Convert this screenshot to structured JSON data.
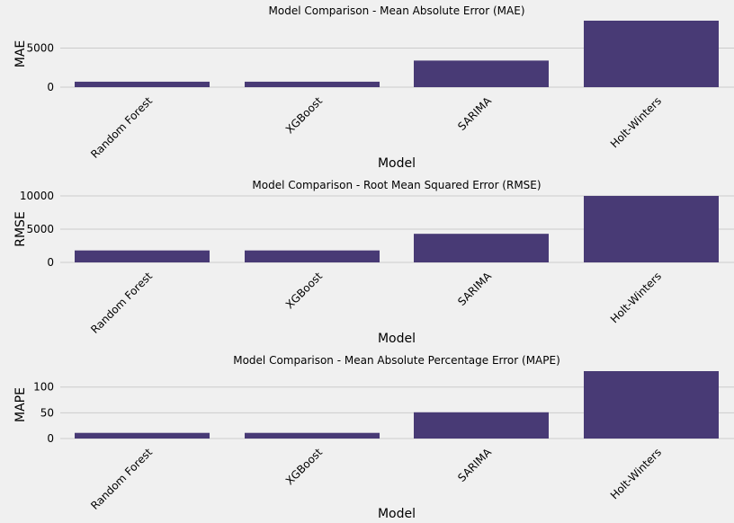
{
  "chart_data": [
    {
      "type": "bar",
      "title": "Model Comparison - Mean Absolute Error (MAE)",
      "xlabel": "Model",
      "ylabel": "MAE",
      "categories": [
        "Random Forest",
        "XGBoost",
        "SARIMA",
        "Holt-Winters"
      ],
      "values": [
        700,
        700,
        3400,
        8500
      ],
      "ylim": [
        0,
        8500
      ],
      "yticks": [
        0,
        5000
      ],
      "grid": true,
      "color": "#483a75"
    },
    {
      "type": "bar",
      "title": "Model Comparison - Root Mean Squared Error (RMSE)",
      "xlabel": "Model",
      "ylabel": "RMSE",
      "categories": [
        "Random Forest",
        "XGBoost",
        "SARIMA",
        "Holt-Winters"
      ],
      "values": [
        1800,
        1800,
        4300,
        10000
      ],
      "ylim": [
        0,
        10000
      ],
      "yticks": [
        0,
        5000,
        10000
      ],
      "grid": true,
      "color": "#483a75"
    },
    {
      "type": "bar",
      "title": "Model Comparison - Mean Absolute Percentage Error (MAPE)",
      "xlabel": "Model",
      "ylabel": "MAPE",
      "categories": [
        "Random Forest",
        "XGBoost",
        "SARIMA",
        "Holt-Winters"
      ],
      "values": [
        11,
        11,
        51,
        131
      ],
      "ylim": [
        0,
        131
      ],
      "yticks": [
        0,
        50,
        100
      ],
      "grid": true,
      "color": "#483a75"
    }
  ]
}
